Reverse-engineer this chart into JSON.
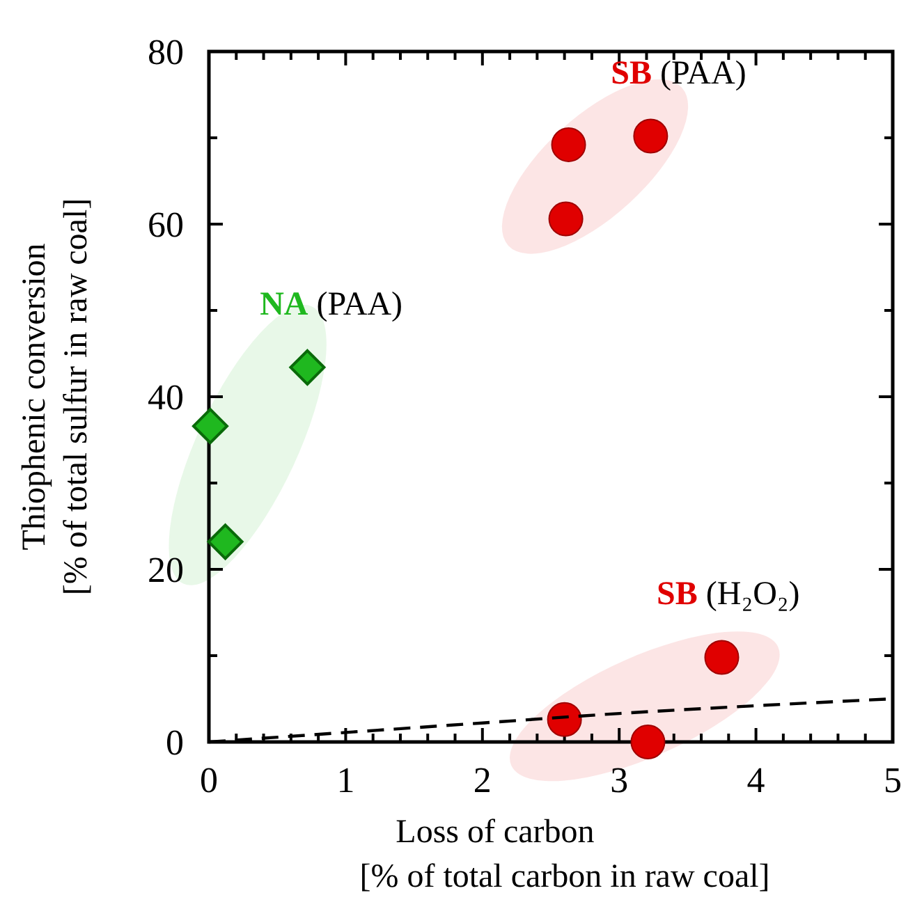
{
  "chart_data": {
    "type": "scatter",
    "xlabel": "Loss of carbon\n[% of total carbon in raw coal]",
    "ylabel": "Thiophenic conversion\n[% of total sulfur in raw coal]",
    "xlim": [
      0,
      5
    ],
    "ylim": [
      0,
      80
    ],
    "xticks": [
      0,
      {
        "value": 0.2,
        "label": null
      },
      {
        "value": 0.4,
        "label": null
      },
      {
        "value": 0.6,
        "label": null
      },
      {
        "value": 0.8,
        "label": null
      },
      1,
      {
        "value": 1.2,
        "label": null
      },
      {
        "value": 1.4,
        "label": null
      },
      {
        "value": 1.6,
        "label": null
      },
      {
        "value": 1.8,
        "label": null
      },
      2,
      {
        "value": 2.2,
        "label": null
      },
      {
        "value": 2.4,
        "label": null
      },
      {
        "value": 2.6,
        "label": null
      },
      {
        "value": 2.8,
        "label": null
      },
      3,
      {
        "value": 3.2,
        "label": null
      },
      {
        "value": 3.4,
        "label": null
      },
      {
        "value": 3.6,
        "label": null
      },
      {
        "value": 3.8,
        "label": null
      },
      4,
      {
        "value": 4.2,
        "label": null
      },
      {
        "value": 4.4,
        "label": null
      },
      {
        "value": 4.6,
        "label": null
      },
      {
        "value": 4.8,
        "label": null
      },
      5
    ],
    "yticks": [
      0,
      {
        "value": 10,
        "label": null
      },
      20,
      {
        "value": 30,
        "label": null
      },
      40,
      {
        "value": 50,
        "label": null
      },
      60,
      {
        "value": 70,
        "label": null
      },
      80
    ],
    "grid": false,
    "series": [
      {
        "name": "NA (PAA)",
        "type": "scatter",
        "marker": "diamond",
        "color": "#1fb81f",
        "x": [
          0.01,
          0.12,
          0.72
        ],
        "values": [
          36.6,
          23.2,
          43.4
        ]
      },
      {
        "name": "SB (PAA)",
        "type": "scatter",
        "marker": "circle",
        "color": "#e00000",
        "x": [
          2.63,
          3.23,
          2.61
        ],
        "values": [
          69.2,
          70.2,
          60.6
        ]
      },
      {
        "name": "SB (H₂O₂)",
        "type": "scatter",
        "marker": "circle",
        "color": "#e00000",
        "x": [
          2.6,
          3.21,
          3.75
        ],
        "values": [
          2.6,
          0,
          9.8
        ]
      },
      {
        "type": "line",
        "line_style": "dashed",
        "color": "#000000",
        "x": [
          0,
          1,
          2,
          3,
          4,
          5
        ],
        "values": [
          0,
          1.1,
          2.2,
          3.3,
          4.2,
          5
        ]
      }
    ]
  }
}
